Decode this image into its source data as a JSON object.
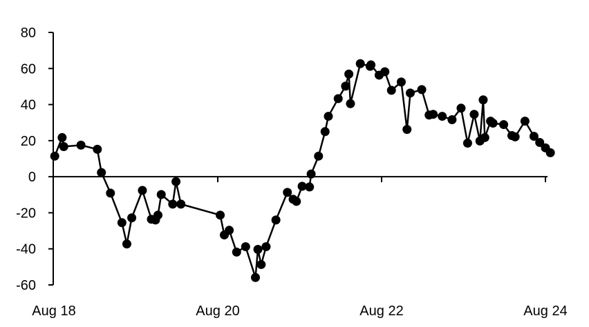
{
  "chart_data": {
    "type": "line",
    "markers": true,
    "title": "",
    "xlabel": "",
    "ylabel": "",
    "x_unit": "day of August",
    "xlim": [
      18,
      24
    ],
    "ylim": [
      -60,
      80
    ],
    "y_ticks": [
      -60,
      -40,
      -20,
      0,
      20,
      40,
      60,
      80
    ],
    "x_ticks": [
      {
        "value": 18,
        "label": "Aug 18"
      },
      {
        "value": 20,
        "label": "Aug 20"
      },
      {
        "value": 22,
        "label": "Aug 22"
      },
      {
        "value": 24,
        "label": "Aug 24"
      }
    ],
    "grid": false,
    "line_color": "#000000",
    "series": [
      {
        "x": [
          18.01,
          18.1,
          18.12,
          18.33,
          18.53,
          18.58,
          18.69,
          18.83,
          18.89,
          18.95,
          19.08,
          19.19,
          19.24,
          19.27,
          19.31,
          19.45,
          19.49,
          19.55,
          20.03,
          20.08,
          20.14,
          20.23,
          20.34,
          20.46,
          20.49,
          20.53,
          20.59,
          20.71,
          20.85,
          20.92,
          20.96,
          21.03,
          21.12,
          21.14,
          21.23,
          21.31,
          21.35,
          21.47,
          21.56,
          21.6,
          21.62,
          21.74,
          21.86,
          21.87,
          21.97,
          22.04,
          22.12,
          22.24,
          22.31,
          22.35,
          22.49,
          22.58,
          22.63,
          22.74,
          22.86,
          22.97,
          23.05,
          23.13,
          23.2,
          23.24,
          23.26,
          23.33,
          23.36,
          23.49,
          23.59,
          23.63,
          23.75,
          23.86,
          23.93,
          24.0,
          24.06
        ],
        "y": [
          11.4,
          21.7,
          16.7,
          17.5,
          15.2,
          2.3,
          -9.1,
          -25.5,
          -37.3,
          -22.8,
          -7.6,
          -23.6,
          -24.0,
          -21.3,
          -9.9,
          -15.2,
          -2.7,
          -15.2,
          -21.3,
          -32.3,
          -29.7,
          -41.8,
          -38.8,
          -55.9,
          -40.3,
          -48.7,
          -38.8,
          -24.0,
          -8.7,
          -12.5,
          -13.7,
          -5.3,
          -5.7,
          1.5,
          11.4,
          25.0,
          33.5,
          43.3,
          50.2,
          56.9,
          40.5,
          62.7,
          61.2,
          62.0,
          56.3,
          58.2,
          47.9,
          52.5,
          26.2,
          46.4,
          48.3,
          34.2,
          34.6,
          33.5,
          31.6,
          38.0,
          18.6,
          34.6,
          19.8,
          42.6,
          21.7,
          30.8,
          29.7,
          28.9,
          22.8,
          22.1,
          30.8,
          22.4,
          19.0,
          16.0,
          13.3
        ]
      }
    ]
  }
}
